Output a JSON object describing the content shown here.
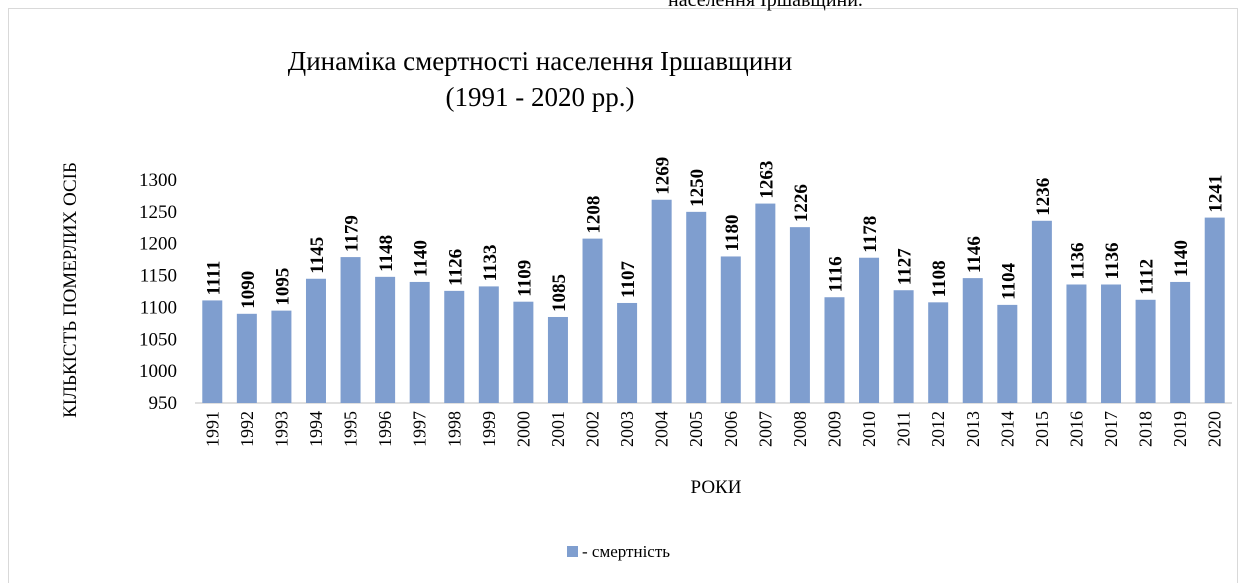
{
  "caption": "населення Іршавщини.",
  "chart_data": {
    "type": "bar",
    "title_lines": [
      "Динаміка смертності населення Іршавщини",
      "(1991 - 2020 рр.)"
    ],
    "x_label": "РОКИ",
    "y_label": "КІЛЬКІСТЬ ПОМЕРЛИХ ОСІБ",
    "categories": [
      "1991",
      "1992",
      "1993",
      "1994",
      "1995",
      "1996",
      "1997",
      "1998",
      "1999",
      "2000",
      "2001",
      "2002",
      "2003",
      "2004",
      "2005",
      "2006",
      "2007",
      "2008",
      "2009",
      "2010",
      "2011",
      "2012",
      "2013",
      "2014",
      "2015",
      "2016",
      "2017",
      "2018",
      "2019",
      "2020"
    ],
    "series": [
      {
        "name": "- смертність",
        "color": "#7f9ecf",
        "values": [
          1111,
          1090,
          1095,
          1145,
          1179,
          1148,
          1140,
          1126,
          1133,
          1109,
          1085,
          1208,
          1107,
          1269,
          1250,
          1180,
          1263,
          1226,
          1116,
          1178,
          1127,
          1108,
          1146,
          1104,
          1236,
          1136,
          1136,
          1112,
          1140,
          1241
        ]
      }
    ],
    "ylim": [
      950,
      1300
    ],
    "yticks": [
      950,
      1000,
      1050,
      1100,
      1150,
      1200,
      1250,
      1300
    ],
    "grid": false,
    "legend": "bottom"
  }
}
